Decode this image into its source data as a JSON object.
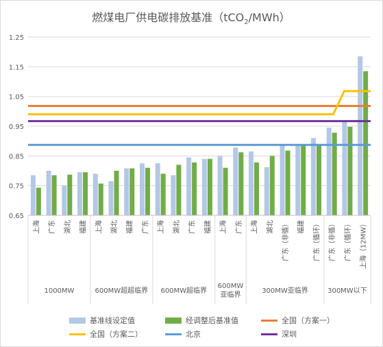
{
  "chart_data": {
    "type": "bar",
    "title": "燃煤电厂供电碳排放基准（tCO₂/MWh）",
    "title_parts": {
      "main": "燃煤电厂供电碳排放基准（tCO",
      "sub": "2",
      "tail": "/MWh）"
    },
    "ylim": [
      0.65,
      1.25
    ],
    "yticks": [
      "0.65",
      "0.75",
      "0.85",
      "0.95",
      "1.05",
      "1.15",
      "1.25"
    ],
    "grid": true,
    "legend_position": "bottom",
    "categories": [
      "上海",
      "广东",
      "湖北",
      "福建",
      "上海",
      "湖北",
      "福建",
      "广东",
      "上海",
      "湖北",
      "广东",
      "福建",
      "上海",
      "广东",
      "上海",
      "湖北",
      "广东（非循）",
      "福建",
      "广东（循环）",
      "广东（非循）",
      "广东（循环）",
      "上海（12MW）"
    ],
    "groups": [
      {
        "label": "1000MW",
        "lines": [
          "1000MW"
        ],
        "count": 4
      },
      {
        "label": "600MW超超临界",
        "lines": [
          "600MW超超临界"
        ],
        "count": 4
      },
      {
        "label": "600MW超临界",
        "lines": [
          "600MW超临界"
        ],
        "count": 4
      },
      {
        "label": "600MW亚临界",
        "lines": [
          "600MW",
          "亚临界"
        ],
        "count": 2
      },
      {
        "label": "300MW亚临界",
        "lines": [
          "300MW亚临界"
        ],
        "count": 5
      },
      {
        "label": "300MW以下",
        "lines": [
          "300MW以下"
        ],
        "count": 3
      }
    ],
    "series": [
      {
        "name": "基准线设定值",
        "color": "#b4c7e7",
        "values": [
          0.785,
          0.8,
          0.75,
          0.795,
          0.79,
          0.765,
          0.808,
          0.825,
          0.825,
          0.785,
          0.845,
          0.84,
          0.85,
          0.878,
          0.865,
          0.812,
          0.89,
          0.89,
          0.91,
          0.945,
          0.968,
          1.185
        ]
      },
      {
        "name": "经调整后基准值",
        "color": "#70ad47",
        "values": [
          0.743,
          0.785,
          0.787,
          0.795,
          0.757,
          0.8,
          0.808,
          0.81,
          0.79,
          0.82,
          0.828,
          0.84,
          0.81,
          0.862,
          0.828,
          0.85,
          0.868,
          0.888,
          0.888,
          0.928,
          0.948,
          1.135
        ]
      }
    ],
    "reference_lines": [
      {
        "name": "全国（方案一）",
        "color": "#ed7d31",
        "segments": [
          [
            0,
            1.018
          ],
          [
            22,
            1.018
          ]
        ]
      },
      {
        "name": "全国（方案二）",
        "color": "#ffc000",
        "segments": [
          [
            0,
            0.99
          ],
          [
            19.6,
            0.99
          ],
          [
            20.3,
            1.068
          ],
          [
            22,
            1.068
          ]
        ]
      },
      {
        "name": "北京",
        "color": "#5b9bd5",
        "segments": [
          [
            0,
            0.887
          ],
          [
            22,
            0.887
          ]
        ]
      },
      {
        "name": "深圳",
        "color": "#7030a0",
        "segments": [
          [
            0,
            0.967
          ],
          [
            22,
            0.967
          ]
        ]
      }
    ]
  },
  "legend": {
    "rows": [
      [
        {
          "label": "基准线设定值",
          "color": "#b4c7e7",
          "kind": "bar"
        },
        {
          "label": "经调整后基准值",
          "color": "#70ad47",
          "kind": "bar"
        },
        {
          "label": "全国（方案一）",
          "color": "#ed7d31",
          "kind": "line"
        }
      ],
      [
        {
          "label": "全国（方案二）",
          "color": "#ffc000",
          "kind": "line"
        },
        {
          "label": "北京",
          "color": "#5b9bd5",
          "kind": "line"
        },
        {
          "label": "深圳",
          "color": "#7030a0",
          "kind": "line"
        }
      ]
    ]
  }
}
